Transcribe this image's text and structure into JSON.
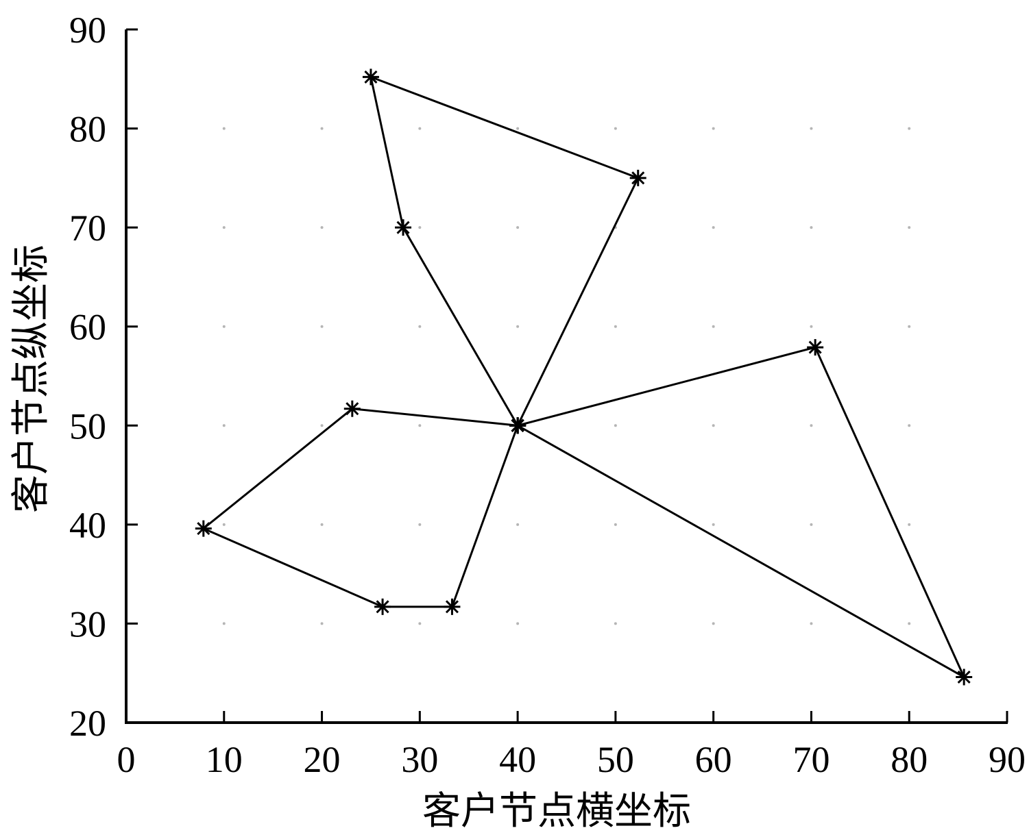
{
  "chart_data": {
    "type": "line",
    "xlabel": "客户节点横坐标",
    "ylabel": "客户节点纵坐标",
    "xlim": [
      0,
      90
    ],
    "ylim": [
      20,
      90
    ],
    "xticks": [
      0,
      10,
      20,
      30,
      40,
      50,
      60,
      70,
      80,
      90
    ],
    "yticks": [
      20,
      30,
      40,
      50,
      60,
      70,
      80,
      90
    ],
    "grid": true,
    "legend": "none",
    "marker": "asterisk",
    "line_color": "#000000",
    "grid_color": "#b5b5b5",
    "series": [
      {
        "x": [
          40,
          28.3,
          25,
          52.3,
          40
        ],
        "y": [
          50,
          70,
          85.2,
          75,
          50
        ]
      },
      {
        "x": [
          40,
          70.4,
          85.6,
          40
        ],
        "y": [
          50,
          57.9,
          24.6,
          50
        ]
      },
      {
        "x": [
          40,
          23.1,
          7.9,
          26.2,
          33.3,
          40
        ],
        "y": [
          50,
          51.7,
          39.6,
          31.7,
          31.7,
          50
        ]
      }
    ]
  }
}
